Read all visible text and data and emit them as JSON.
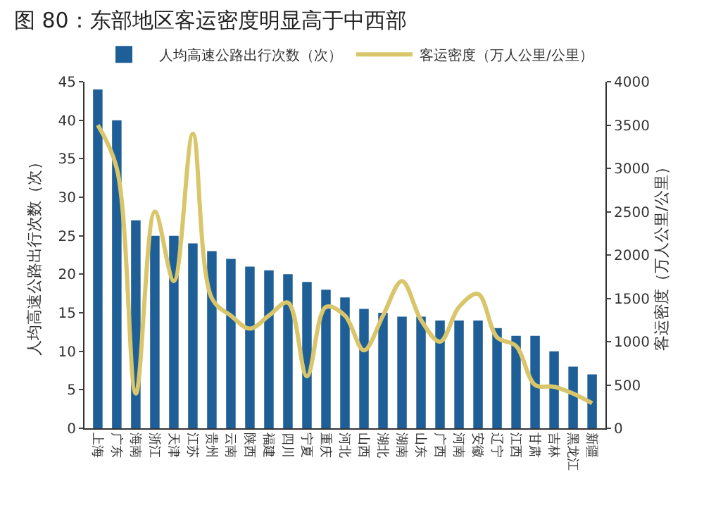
{
  "chart_data": {
    "type": "bar",
    "title": "图 80：东部地区客运密度明显高于中西部",
    "categories": [
      "上海",
      "广东",
      "海南",
      "浙江",
      "天津",
      "江苏",
      "贵州",
      "云南",
      "陕西",
      "福建",
      "四川",
      "宁夏",
      "重庆",
      "河北",
      "山西",
      "湖北",
      "湖南",
      "山东",
      "广西",
      "河南",
      "安徽",
      "辽宁",
      "江西",
      "甘肃",
      "吉林",
      "黑龙江",
      "新疆"
    ],
    "ylabel": "人均高速公路出行次数（次）",
    "y2label": "客运密度（万人公里/公里）",
    "series": [
      {
        "name": "人均高速公路出行次数（次）",
        "color": "#1f5f97",
        "values": [
          44,
          40,
          27,
          25,
          25,
          24,
          23,
          22,
          21,
          20.5,
          20,
          19,
          18,
          17,
          15.5,
          15,
          14.5,
          14.5,
          14,
          14,
          14,
          13,
          12,
          12,
          10,
          8,
          7
        ]
      },
      {
        "name": "客运密度（万人公里/公里）",
        "type": "line",
        "axis": "y2",
        "color": "#d9c66a",
        "values": [
          3500,
          3000,
          400,
          2500,
          1700,
          3400,
          1500,
          1300,
          1150,
          1300,
          1450,
          600,
          1400,
          1300,
          900,
          1300,
          1700,
          1250,
          1000,
          1400,
          1550,
          1050,
          950,
          500,
          480,
          400,
          290
        ]
      }
    ],
    "ylim": [
      0,
      45
    ],
    "yticks": [
      0,
      5,
      10,
      15,
      20,
      25,
      30,
      35,
      40,
      45
    ],
    "y2lim": [
      0,
      4000
    ],
    "y2ticks": [
      0,
      500,
      1000,
      1500,
      2000,
      2500,
      3000,
      3500,
      4000
    ],
    "legend": "top",
    "grid": false
  }
}
